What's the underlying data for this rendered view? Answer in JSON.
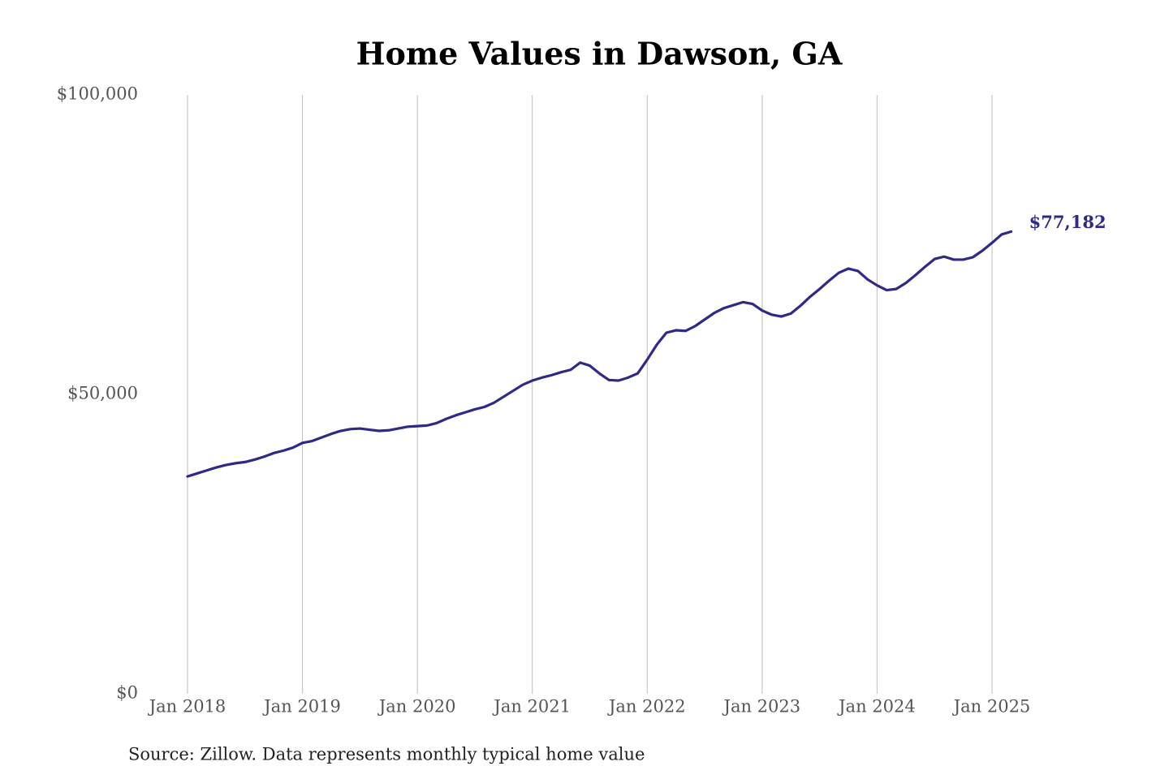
{
  "chart_data": {
    "type": "line",
    "title": "Home Values in Dawson, GA",
    "caption": "Source: Zillow. Data represents monthly typical home value",
    "x": [
      "2018-01",
      "2018-02",
      "2018-03",
      "2018-04",
      "2018-05",
      "2018-06",
      "2018-07",
      "2018-08",
      "2018-09",
      "2018-10",
      "2018-11",
      "2018-12",
      "2019-01",
      "2019-02",
      "2019-03",
      "2019-04",
      "2019-05",
      "2019-06",
      "2019-07",
      "2019-08",
      "2019-09",
      "2019-10",
      "2019-11",
      "2019-12",
      "2020-01",
      "2020-02",
      "2020-03",
      "2020-04",
      "2020-05",
      "2020-06",
      "2020-07",
      "2020-08",
      "2020-09",
      "2020-10",
      "2020-11",
      "2020-12",
      "2021-01",
      "2021-02",
      "2021-03",
      "2021-04",
      "2021-05",
      "2021-06",
      "2021-07",
      "2021-08",
      "2021-09",
      "2021-10",
      "2021-11",
      "2021-12",
      "2022-01",
      "2022-02",
      "2022-03",
      "2022-04",
      "2022-05",
      "2022-06",
      "2022-07",
      "2022-08",
      "2022-09",
      "2022-10",
      "2022-11",
      "2022-12",
      "2023-01",
      "2023-02",
      "2023-03",
      "2023-04",
      "2023-05",
      "2023-06",
      "2023-07",
      "2023-08",
      "2023-09",
      "2023-10",
      "2023-11",
      "2023-12",
      "2024-01",
      "2024-02",
      "2024-03",
      "2024-04",
      "2024-05",
      "2024-06",
      "2024-07",
      "2024-08",
      "2024-09",
      "2024-10",
      "2024-11",
      "2024-12",
      "2025-01",
      "2025-02",
      "2025-03"
    ],
    "values": [
      36300,
      36800,
      37300,
      37800,
      38200,
      38500,
      38700,
      39100,
      39600,
      40200,
      40600,
      41100,
      41900,
      42200,
      42800,
      43400,
      43900,
      44200,
      44300,
      44100,
      43900,
      44000,
      44300,
      44600,
      44700,
      44800,
      45200,
      45900,
      46500,
      47000,
      47500,
      47900,
      48600,
      49600,
      50600,
      51600,
      52300,
      52800,
      53200,
      53700,
      54100,
      55300,
      54800,
      53500,
      52400,
      52300,
      52800,
      53500,
      55800,
      58300,
      60300,
      60700,
      60600,
      61400,
      62500,
      63600,
      64400,
      64900,
      65400,
      65100,
      64000,
      63300,
      63000,
      63500,
      64800,
      66300,
      67600,
      69000,
      70300,
      71000,
      70600,
      69200,
      68200,
      67400,
      67600,
      68600,
      69900,
      71300,
      72600,
      73000,
      72500,
      72500,
      72900,
      74000,
      75300,
      76700,
      77182
    ],
    "value_labels": [
      null,
      null,
      null,
      null,
      null,
      null,
      null,
      null,
      null,
      null,
      null,
      null,
      null,
      null,
      null,
      null,
      null,
      null,
      null,
      null,
      null,
      null,
      null,
      null,
      null,
      null,
      null,
      null,
      null,
      null,
      null,
      null,
      null,
      null,
      null,
      null,
      null,
      null,
      null,
      null,
      null,
      null,
      null,
      null,
      null,
      null,
      null,
      null,
      null,
      null,
      null,
      null,
      null,
      null,
      null,
      null,
      null,
      null,
      null,
      null,
      null,
      null,
      null,
      null,
      null,
      null,
      null,
      null,
      null,
      null,
      null,
      null,
      null,
      null,
      null,
      null,
      null,
      null,
      null,
      null,
      null,
      null,
      null,
      null,
      null,
      null,
      "$77,182"
    ],
    "color": "#2e2a86",
    "xlim": [
      "2018-01",
      "2025-03"
    ],
    "xticks": [
      {
        "value": "2018-01",
        "label": "Jan 2018"
      },
      {
        "value": "2019-01",
        "label": "Jan 2019"
      },
      {
        "value": "2020-01",
        "label": "Jan 2020"
      },
      {
        "value": "2021-01",
        "label": "Jan 2021"
      },
      {
        "value": "2022-01",
        "label": "Jan 2022"
      },
      {
        "value": "2023-01",
        "label": "Jan 2023"
      },
      {
        "value": "2024-01",
        "label": "Jan 2024"
      },
      {
        "value": "2025-01",
        "label": "Jan 2025"
      }
    ],
    "ylim": [
      0,
      100000
    ],
    "yticks": [
      {
        "value": 0,
        "label": "$0"
      },
      {
        "value": 50000,
        "label": "$50,000"
      },
      {
        "value": 100000,
        "label": "$100,000"
      }
    ],
    "grid": "x"
  }
}
